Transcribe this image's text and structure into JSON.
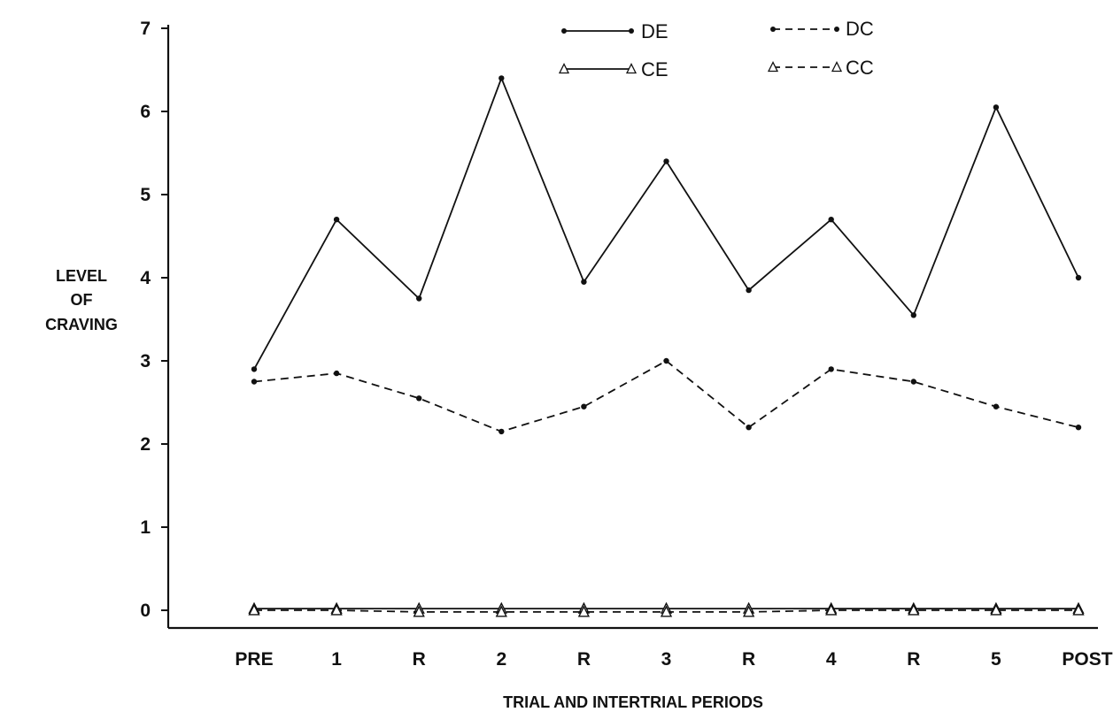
{
  "chart_data": {
    "type": "line",
    "title": "",
    "xlabel": "TRIAL AND INTERTRIAL PERIODS",
    "ylabel": [
      "LEVEL",
      "OF",
      "CRAVING"
    ],
    "categories": [
      "PRE",
      "1",
      "R",
      "2",
      "R",
      "3",
      "R",
      "4",
      "R",
      "5",
      "POST"
    ],
    "ylim": [
      0,
      7
    ],
    "yticks": [
      "0",
      "1",
      "2",
      "3",
      "4",
      "5",
      "6",
      "7"
    ],
    "grid": false,
    "legend_position": "top-center",
    "series": [
      {
        "name": "DE",
        "style": "solid",
        "marker": "dot",
        "values": [
          2.9,
          4.7,
          3.75,
          6.4,
          3.95,
          5.4,
          3.85,
          4.7,
          3.55,
          6.05,
          4.0
        ]
      },
      {
        "name": "DC",
        "style": "dashed",
        "marker": "dot",
        "values": [
          2.75,
          2.85,
          2.55,
          2.15,
          2.45,
          3.0,
          2.2,
          2.9,
          2.75,
          2.45,
          2.2
        ]
      },
      {
        "name": "CE",
        "style": "solid",
        "marker": "triangle",
        "values": [
          0.02,
          0.02,
          0.02,
          0.02,
          0.02,
          0.02,
          0.02,
          0.02,
          0.02,
          0.02,
          0.02
        ]
      },
      {
        "name": "CC",
        "style": "dashed",
        "marker": "triangle",
        "values": [
          0.0,
          0.0,
          -0.02,
          -0.02,
          -0.02,
          -0.02,
          -0.02,
          0.0,
          0.0,
          0.0,
          0.0
        ]
      }
    ]
  }
}
